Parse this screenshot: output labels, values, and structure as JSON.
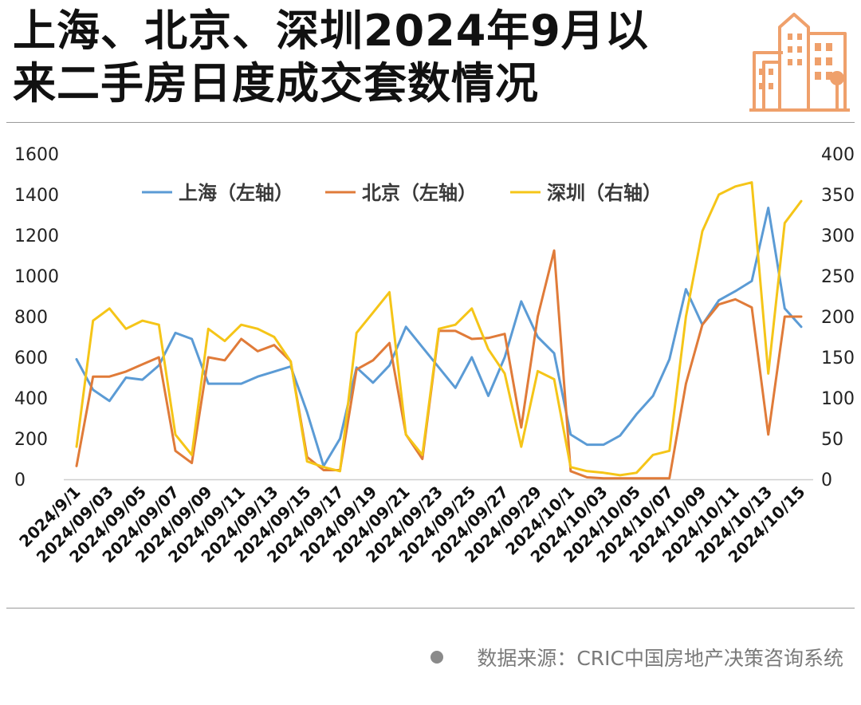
{
  "title": {
    "line1": "上海、北京、深圳2024年9月以",
    "line2": "来二手房日度成交套数情况"
  },
  "source": "数据来源：CRIC中国房地产决策咨询系统",
  "colors": {
    "shanghai": "#5B9BD5",
    "beijing": "#E07B39",
    "shenzhen": "#F5C518",
    "logo": "#EFA06B"
  },
  "chart_data": {
    "type": "line",
    "x": [
      "2024/9/1",
      "2024/09/02",
      "2024/09/03",
      "2024/09/04",
      "2024/09/05",
      "2024/09/06",
      "2024/09/07",
      "2024/09/08",
      "2024/09/09",
      "2024/09/10",
      "2024/09/11",
      "2024/09/12",
      "2024/09/13",
      "2024/09/14",
      "2024/09/15",
      "2024/09/16",
      "2024/09/17",
      "2024/09/18",
      "2024/09/19",
      "2024/09/20",
      "2024/09/21",
      "2024/09/22",
      "2024/09/23",
      "2024/09/24",
      "2024/09/25",
      "2024/09/26",
      "2024/09/27",
      "2024/09/28",
      "2024/09/29",
      "2024/09/30",
      "2024/10/1",
      "2024/10/02",
      "2024/10/03",
      "2024/10/04",
      "2024/10/05",
      "2024/10/06",
      "2024/10/07",
      "2024/10/08",
      "2024/10/09",
      "2024/10/10",
      "2024/10/11",
      "2024/10/12",
      "2024/10/13",
      "2024/10/14",
      "2024/10/15"
    ],
    "x_tick_labels": [
      "2024/9/1",
      "2024/09/03",
      "2024/09/05",
      "2024/09/07",
      "2024/09/09",
      "2024/09/11",
      "2024/09/13",
      "2024/09/15",
      "2024/09/17",
      "2024/09/19",
      "2024/09/21",
      "2024/09/23",
      "2024/09/25",
      "2024/09/27",
      "2024/09/29",
      "2024/10/1",
      "2024/10/03",
      "2024/10/05",
      "2024/10/07",
      "2024/10/09",
      "2024/10/11",
      "2024/10/13",
      "2024/10/15"
    ],
    "y_left_ticks": [
      0,
      200,
      400,
      600,
      800,
      1000,
      1200,
      1400,
      1600
    ],
    "y_right_ticks": [
      0,
      50,
      100,
      150,
      200,
      250,
      300,
      350,
      400
    ],
    "ylim_left": [
      0,
      1600
    ],
    "ylim_right": [
      0,
      400
    ],
    "legend_position": "top",
    "series": [
      {
        "name": "上海（左轴）",
        "axis": "left",
        "color_key": "shanghai",
        "values": [
          590,
          440,
          385,
          500,
          490,
          560,
          720,
          690,
          470,
          470,
          470,
          505,
          530,
          555,
          330,
          65,
          200,
          550,
          475,
          560,
          750,
          650,
          550,
          450,
          600,
          410,
          600,
          875,
          700,
          620,
          220,
          170,
          170,
          215,
          320,
          410,
          590,
          935,
          760,
          880,
          925,
          975,
          1335,
          840,
          750
        ]
      },
      {
        "name": "北京（左轴）",
        "axis": "left",
        "color_key": "beijing",
        "values": [
          65,
          505,
          505,
          530,
          565,
          600,
          140,
          80,
          600,
          585,
          690,
          630,
          660,
          580,
          110,
          45,
          45,
          540,
          585,
          670,
          220,
          100,
          730,
          730,
          690,
          695,
          715,
          255,
          800,
          1125,
          40,
          10,
          5,
          5,
          5,
          5,
          5,
          470,
          760,
          860,
          885,
          845,
          220,
          800,
          800
        ]
      },
      {
        "name": "深圳（右轴）",
        "axis": "right",
        "color_key": "shenzhen",
        "values": [
          40,
          195,
          210,
          185,
          195,
          190,
          55,
          30,
          185,
          170,
          190,
          185,
          175,
          145,
          22,
          15,
          10,
          180,
          205,
          230,
          55,
          30,
          185,
          190,
          210,
          160,
          130,
          40,
          133,
          123,
          15,
          10,
          8,
          5,
          8,
          30,
          35,
          200,
          305,
          350,
          360,
          365,
          130,
          315,
          342
        ]
      }
    ]
  }
}
